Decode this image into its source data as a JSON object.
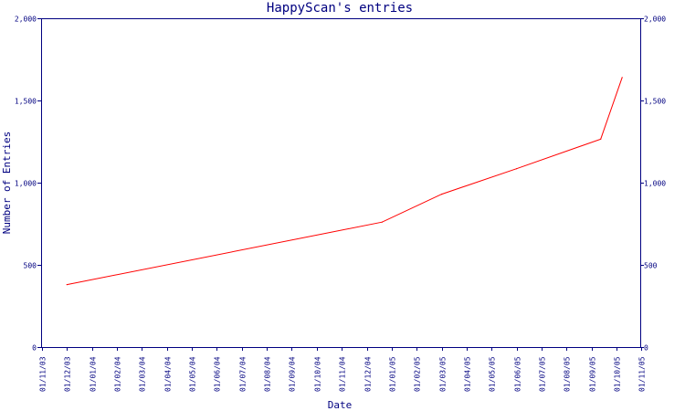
{
  "chart_data": {
    "type": "line",
    "title": "HappyScan's entries",
    "xlabel": "Date",
    "ylabel": "Number of Entries",
    "ylim": [
      0,
      2000
    ],
    "yticks": [
      "0",
      "500",
      "1,000",
      "1,500",
      "2,000"
    ],
    "ytick_values": [
      0,
      500,
      1000,
      1500,
      2000
    ],
    "x_tick_labels": [
      "01/11/03",
      "01/12/03",
      "01/01/04",
      "01/02/04",
      "01/03/04",
      "01/04/04",
      "01/05/04",
      "01/06/04",
      "01/07/04",
      "01/08/04",
      "01/09/04",
      "01/10/04",
      "01/11/04",
      "01/12/04",
      "01/01/05",
      "01/02/05",
      "01/03/05",
      "01/04/05",
      "01/05/05",
      "01/06/05",
      "01/07/05",
      "01/08/05",
      "01/09/05",
      "01/10/05",
      "01/11/05"
    ],
    "grid": false,
    "secondary_y_axis": true,
    "line_color": "#ff0000",
    "axis_color": "#000080",
    "series": [
      {
        "x": [
          "2003-12-01",
          "2004-12-20",
          "2005-03-01",
          "2005-06-01",
          "2005-09-12",
          "2005-10-08"
        ],
        "values": [
          380,
          760,
          930,
          1085,
          1265,
          1640
        ]
      }
    ]
  }
}
